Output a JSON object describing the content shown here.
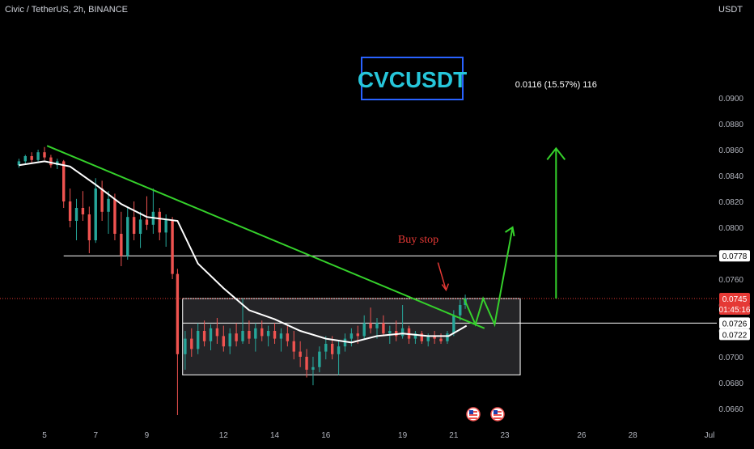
{
  "header": {
    "symbol_line": "Civic / TetherUS, 2h, BINANCE",
    "currency": "USDT"
  },
  "title_box": {
    "text": "CVCUSDT",
    "color": "#2962ff",
    "text_color": "#26c6da"
  },
  "projection_label": "0.0116 (15.57%) 116",
  "buy_stop_label": "Buy stop",
  "colors": {
    "up": "#26a69a",
    "down": "#ef5350",
    "ma": "#ffffff",
    "trendline": "#35d12b",
    "arrow": "#35d12b",
    "buy_stop": "#e53935",
    "range_box_fill": "#2a2a2e",
    "range_box_border": "#ffffff",
    "current_price": "#e53935"
  },
  "price_scale": {
    "ticks": [
      "0.0660",
      "0.0680",
      "0.0700",
      "0.0720",
      "0.0740",
      "0.0760",
      "0.0780",
      "0.0800",
      "0.0820",
      "0.0840",
      "0.0860",
      "0.0880",
      "0.0900"
    ]
  },
  "price_labels": {
    "resistance": "0.0778",
    "current": "0.0745",
    "countdown": "01:45:16",
    "upper_range": "0.0726",
    "ma_value": "0.0722"
  },
  "time_axis": {
    "labels": [
      "5",
      "7",
      "9",
      "12",
      "14",
      "16",
      "19",
      "21",
      "23",
      "26",
      "28",
      "Jul"
    ]
  },
  "chart_data": {
    "type": "candlestick",
    "pair": "CVCUSDT",
    "interval": "2h",
    "x_domain": [
      4.0,
      31.0
    ],
    "ylim": [
      0.0648,
      0.0914
    ],
    "x_ticks": [
      5,
      7,
      9,
      12,
      14,
      16,
      19,
      21,
      23,
      26,
      28,
      31
    ],
    "levels": {
      "resistance": 0.0778,
      "current_price": 0.0745,
      "range_top": 0.0745,
      "range_mid": 0.0726,
      "range_bottom": 0.0686
    },
    "range_box_x": [
      10.4,
      23.6
    ],
    "trendline": {
      "x": [
        5.1,
        22.2
      ],
      "y": [
        0.0863,
        0.0722
      ]
    },
    "projection_arrow_path": {
      "x": [
        21.4,
        21.85,
        22.15,
        22.6,
        23.3
      ],
      "y": [
        0.0745,
        0.0725,
        0.0745,
        0.0725,
        0.08
      ]
    },
    "target_arrow": {
      "x": 25.0,
      "y_from": 0.0745,
      "y_to": 0.0861
    },
    "buy_stop_point": {
      "x": 20.7,
      "y": 0.0749
    },
    "moving_average": [
      [
        4.0,
        0.0848
      ],
      [
        5.0,
        0.0851
      ],
      [
        6.0,
        0.0847
      ],
      [
        7.0,
        0.0833
      ],
      [
        8.0,
        0.0818
      ],
      [
        9.0,
        0.0808
      ],
      [
        10.2,
        0.0805
      ],
      [
        11.0,
        0.0772
      ],
      [
        12.0,
        0.0753
      ],
      [
        13.0,
        0.0736
      ],
      [
        14.0,
        0.0729
      ],
      [
        15.0,
        0.072
      ],
      [
        16.0,
        0.0714
      ],
      [
        17.0,
        0.0711
      ],
      [
        18.0,
        0.0716
      ],
      [
        19.0,
        0.0718
      ],
      [
        20.0,
        0.0716
      ],
      [
        20.8,
        0.0716
      ],
      [
        21.5,
        0.0724
      ]
    ],
    "candles": [
      [
        4.0,
        0.0848,
        0.0853,
        0.0846,
        0.0851
      ],
      [
        4.25,
        0.0851,
        0.0856,
        0.0849,
        0.0855
      ],
      [
        4.5,
        0.0855,
        0.0858,
        0.085,
        0.0852
      ],
      [
        4.75,
        0.0852,
        0.086,
        0.0851,
        0.0858
      ],
      [
        5.0,
        0.0858,
        0.0862,
        0.0852,
        0.0854
      ],
      [
        5.25,
        0.0854,
        0.0856,
        0.0846,
        0.0848
      ],
      [
        5.5,
        0.0848,
        0.0853,
        0.0845,
        0.0851
      ],
      [
        5.75,
        0.0851,
        0.0852,
        0.0815,
        0.082
      ],
      [
        6.0,
        0.082,
        0.083,
        0.08,
        0.0805
      ],
      [
        6.25,
        0.0805,
        0.0822,
        0.079,
        0.0815
      ],
      [
        6.5,
        0.0815,
        0.0828,
        0.0805,
        0.081
      ],
      [
        6.75,
        0.081,
        0.0816,
        0.078,
        0.079
      ],
      [
        7.0,
        0.079,
        0.0838,
        0.0788,
        0.083
      ],
      [
        7.25,
        0.083,
        0.0836,
        0.0805,
        0.0812
      ],
      [
        7.5,
        0.0812,
        0.0828,
        0.0795,
        0.0822
      ],
      [
        7.75,
        0.0822,
        0.0826,
        0.079,
        0.0795
      ],
      [
        8.0,
        0.0795,
        0.0812,
        0.077,
        0.0778
      ],
      [
        8.25,
        0.0778,
        0.0815,
        0.0775,
        0.0808
      ],
      [
        8.5,
        0.0808,
        0.082,
        0.079,
        0.0795
      ],
      [
        8.75,
        0.0795,
        0.0812,
        0.0784,
        0.0806
      ],
      [
        9.0,
        0.0806,
        0.0824,
        0.0798,
        0.0802
      ],
      [
        9.25,
        0.0802,
        0.083,
        0.0795,
        0.0812
      ],
      [
        9.5,
        0.0812,
        0.0815,
        0.079,
        0.0796
      ],
      [
        9.75,
        0.0796,
        0.081,
        0.0785,
        0.0806
      ],
      [
        10.0,
        0.0806,
        0.0808,
        0.076,
        0.0764
      ],
      [
        10.2,
        0.0764,
        0.0768,
        0.0655,
        0.0702
      ],
      [
        10.5,
        0.0702,
        0.072,
        0.069,
        0.0714
      ],
      [
        10.75,
        0.0714,
        0.0722,
        0.07,
        0.0706
      ],
      [
        11.0,
        0.0706,
        0.0726,
        0.0702,
        0.072
      ],
      [
        11.25,
        0.072,
        0.0728,
        0.0708,
        0.0712
      ],
      [
        11.5,
        0.0712,
        0.0725,
        0.0705,
        0.0722
      ],
      [
        11.75,
        0.0722,
        0.073,
        0.071,
        0.0716
      ],
      [
        12.0,
        0.0716,
        0.0724,
        0.0704,
        0.0708
      ],
      [
        12.25,
        0.0708,
        0.0722,
        0.0702,
        0.0718
      ],
      [
        12.5,
        0.0718,
        0.0726,
        0.0708,
        0.0712
      ],
      [
        12.75,
        0.0712,
        0.0745,
        0.071,
        0.072
      ],
      [
        13.0,
        0.072,
        0.0728,
        0.071,
        0.0714
      ],
      [
        13.25,
        0.0714,
        0.0726,
        0.0704,
        0.0722
      ],
      [
        13.5,
        0.0722,
        0.0728,
        0.0712,
        0.0716
      ],
      [
        13.75,
        0.0716,
        0.0724,
        0.0708,
        0.072
      ],
      [
        14.0,
        0.072,
        0.0726,
        0.071,
        0.0714
      ],
      [
        14.25,
        0.0714,
        0.0722,
        0.0704,
        0.0718
      ],
      [
        14.5,
        0.0718,
        0.0724,
        0.0708,
        0.0712
      ],
      [
        14.75,
        0.0712,
        0.072,
        0.0698,
        0.0704
      ],
      [
        15.0,
        0.0704,
        0.0712,
        0.0692,
        0.07
      ],
      [
        15.25,
        0.07,
        0.0706,
        0.0684,
        0.069
      ],
      [
        15.5,
        0.069,
        0.07,
        0.0678,
        0.0692
      ],
      [
        15.75,
        0.0692,
        0.0708,
        0.0688,
        0.0704
      ],
      [
        16.0,
        0.0704,
        0.0716,
        0.0698,
        0.071
      ],
      [
        16.25,
        0.071,
        0.0716,
        0.0698,
        0.0702
      ],
      [
        16.5,
        0.0702,
        0.0712,
        0.0686,
        0.0708
      ],
      [
        16.75,
        0.0708,
        0.0718,
        0.0704,
        0.0714
      ],
      [
        17.0,
        0.0714,
        0.0722,
        0.0708,
        0.0718
      ],
      [
        17.25,
        0.0718,
        0.0724,
        0.071,
        0.0716
      ],
      [
        17.5,
        0.0716,
        0.0732,
        0.0714,
        0.0726
      ],
      [
        17.75,
        0.0726,
        0.0738,
        0.0718,
        0.0722
      ],
      [
        18.0,
        0.0722,
        0.073,
        0.0714,
        0.0726
      ],
      [
        18.25,
        0.0726,
        0.0732,
        0.0716,
        0.0718
      ],
      [
        18.5,
        0.0718,
        0.0724,
        0.071,
        0.072
      ],
      [
        18.75,
        0.072,
        0.0728,
        0.0712,
        0.0716
      ],
      [
        19.0,
        0.0716,
        0.074,
        0.0714,
        0.0722
      ],
      [
        19.25,
        0.0722,
        0.0724,
        0.071,
        0.0714
      ],
      [
        19.5,
        0.0714,
        0.072,
        0.071,
        0.0718
      ],
      [
        19.75,
        0.0718,
        0.072,
        0.071,
        0.0712
      ],
      [
        20.0,
        0.0712,
        0.0718,
        0.0708,
        0.0716
      ],
      [
        20.25,
        0.0716,
        0.072,
        0.071,
        0.0714
      ],
      [
        20.5,
        0.0714,
        0.0718,
        0.071,
        0.0712
      ],
      [
        20.75,
        0.0712,
        0.072,
        0.071,
        0.0718
      ],
      [
        21.0,
        0.0718,
        0.0736,
        0.0716,
        0.0732
      ],
      [
        21.25,
        0.0732,
        0.0744,
        0.0728,
        0.074
      ],
      [
        21.45,
        0.074,
        0.0748,
        0.0737,
        0.0745
      ]
    ]
  }
}
